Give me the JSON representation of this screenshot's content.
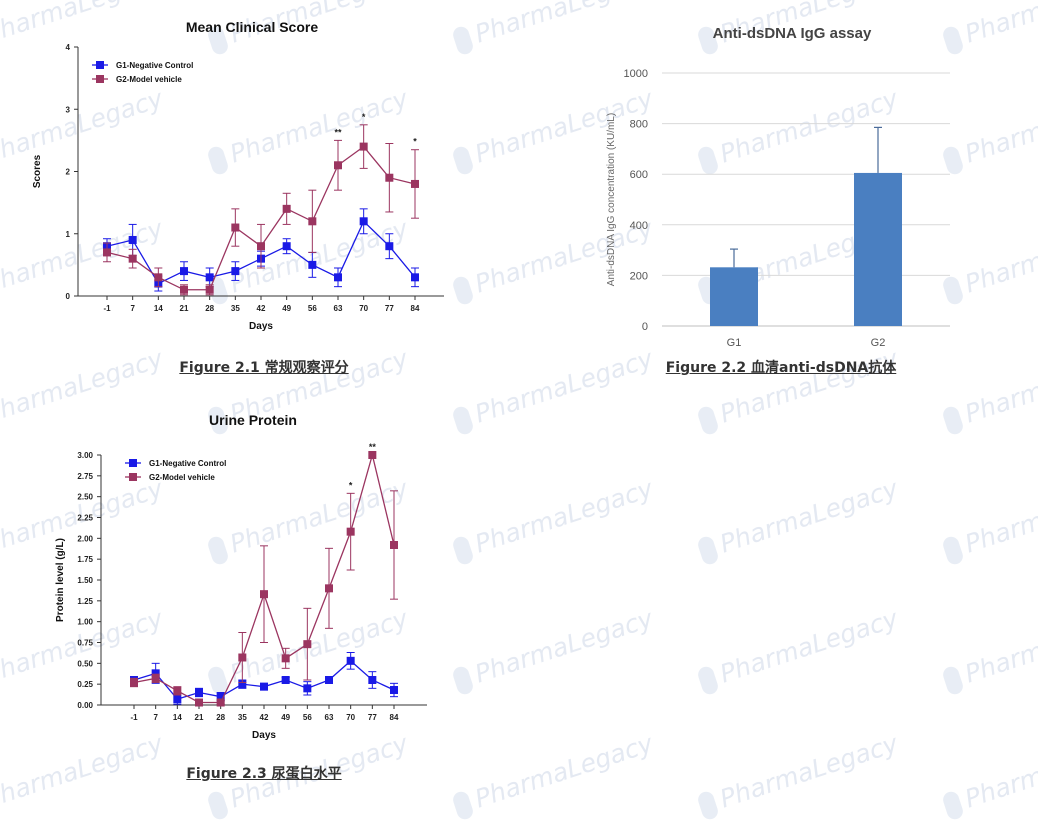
{
  "watermark_text": "PharmaLegacy",
  "colors": {
    "g1": "#1a1ae6",
    "g2": "#9b3560",
    "bar": "#4a7fc1",
    "axis": "#333333"
  },
  "figures": [
    {
      "id": "fig21",
      "caption": "Figure 2.1 常规观察评分",
      "title": "Mean Clinical Score",
      "xlabel": "Days",
      "ylabel": "Scores"
    },
    {
      "id": "fig22",
      "caption": "Figure 2.2 血清anti-dsDNA抗体",
      "title": "Anti-dsDNA IgG assay",
      "xlabel": "",
      "ylabel": "Anti-dsDNA IgG concentration (KU/mL)"
    },
    {
      "id": "fig23",
      "caption": "Figure 2.3 尿蛋白水平",
      "title": "Urine Protein",
      "xlabel": "Days",
      "ylabel": "Protein level (g/L)"
    }
  ],
  "chart_data": [
    {
      "type": "line",
      "title": "Mean Clinical Score",
      "xlabel": "Days",
      "ylabel": "Scores",
      "categories": [
        "-1",
        "7",
        "14",
        "21",
        "28",
        "35",
        "42",
        "49",
        "56",
        "63",
        "70",
        "77",
        "84"
      ],
      "ylim": [
        0,
        4
      ],
      "yticks": [
        "0",
        "1",
        "2",
        "3",
        "4"
      ],
      "legend": "top-left",
      "series": [
        {
          "name": "G1-Negative Control",
          "values": [
            0.8,
            0.9,
            0.2,
            0.4,
            0.3,
            0.4,
            0.6,
            0.8,
            0.5,
            0.3,
            1.2,
            0.8,
            0.3
          ],
          "errors": [
            0.12,
            0.25,
            0.12,
            0.15,
            0.15,
            0.15,
            0.12,
            0.12,
            0.2,
            0.15,
            0.2,
            0.2,
            0.15
          ]
        },
        {
          "name": "G2-Model vehicle",
          "values": [
            0.7,
            0.6,
            0.3,
            0.1,
            0.1,
            1.1,
            0.8,
            1.4,
            1.2,
            2.1,
            2.4,
            1.9,
            1.8
          ],
          "errors": [
            0.15,
            0.15,
            0.15,
            0.08,
            0.08,
            0.3,
            0.35,
            0.25,
            0.5,
            0.4,
            0.35,
            0.55,
            0.55
          ]
        }
      ],
      "annotations": [
        {
          "index": 9,
          "text": "**"
        },
        {
          "index": 10,
          "text": "*"
        },
        {
          "index": 12,
          "text": "*"
        }
      ]
    },
    {
      "type": "bar",
      "title": "Anti-dsDNA IgG assay",
      "ylabel": "Anti-dsDNA IgG concentration (KU/mL)",
      "categories": [
        "G1",
        "G2"
      ],
      "values": [
        232,
        605
      ],
      "errors": [
        72,
        180
      ],
      "ylim": [
        0,
        1000
      ],
      "yticks": [
        "0",
        "200",
        "400",
        "600",
        "800",
        "1000"
      ],
      "grid": true
    },
    {
      "type": "line",
      "title": "Urine Protein",
      "xlabel": "Days",
      "ylabel": "Protein level (g/L)",
      "categories": [
        "-1",
        "7",
        "14",
        "21",
        "28",
        "35",
        "42",
        "49",
        "56",
        "63",
        "70",
        "77",
        "84"
      ],
      "ylim": [
        0,
        3
      ],
      "yticks": [
        "0.00",
        "0.25",
        "0.50",
        "0.75",
        "1.00",
        "1.25",
        "1.50",
        "1.75",
        "2.00",
        "2.25",
        "2.50",
        "2.75",
        "3.00"
      ],
      "legend": "top-left",
      "series": [
        {
          "name": "G1-Negative Control",
          "values": [
            0.3,
            0.38,
            0.07,
            0.15,
            0.1,
            0.25,
            0.22,
            0.3,
            0.2,
            0.3,
            0.53,
            0.3,
            0.18
          ],
          "errors": [
            0.03,
            0.12,
            0.06,
            0.05,
            0.05,
            0.05,
            0.04,
            0.03,
            0.08,
            0.03,
            0.1,
            0.1,
            0.08
          ]
        },
        {
          "name": "G2-Model vehicle",
          "values": [
            0.27,
            0.32,
            0.17,
            0.03,
            0.03,
            0.57,
            1.33,
            0.56,
            0.73,
            1.4,
            2.08,
            3.0,
            1.92
          ],
          "errors": [
            0.05,
            0.05,
            0.05,
            0.02,
            0.02,
            0.3,
            0.58,
            0.12,
            0.43,
            0.48,
            0.46,
            0.0,
            0.65
          ]
        }
      ],
      "annotations": [
        {
          "index": 10,
          "text": "*"
        },
        {
          "index": 11,
          "text": "**"
        }
      ]
    }
  ]
}
